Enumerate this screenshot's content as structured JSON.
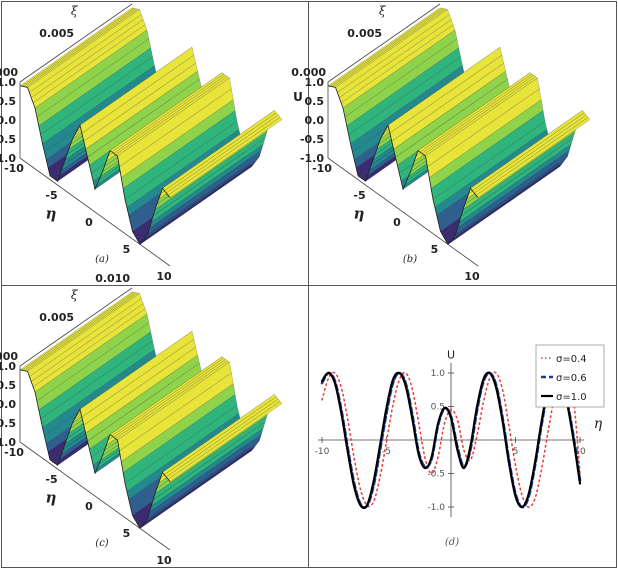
{
  "panels": [
    {
      "caption": "(a)"
    },
    {
      "caption": "(b)"
    },
    {
      "caption": "(c)"
    },
    {
      "caption": "(d)"
    }
  ],
  "surface_axes": {
    "xi_label": "ξ",
    "eta_label": "η",
    "u_label": "U",
    "xi_ticks": [
      "0.000",
      "0.005",
      "0.010"
    ],
    "eta_ticks": [
      "-10",
      "-5",
      "0",
      "5",
      "10"
    ],
    "u_ticks": [
      "1.0",
      "0.5",
      "0.0",
      "-0.5",
      "-1.0"
    ]
  },
  "colors": {
    "surface_low": "#2c1b5e",
    "surface_mid": "#21918c",
    "surface_high": "#f7e838",
    "series_0": "#e8453c",
    "series_1": "#1f3b8f",
    "series_2": "#000000"
  },
  "chart_data": [
    {
      "type": "surface",
      "panel": "(a)",
      "xlabel": "η",
      "ylabel": "ξ",
      "zlabel": "U",
      "xlim": [
        -10,
        10
      ],
      "ylim": [
        0,
        0.01
      ],
      "zlim": [
        -1,
        1
      ],
      "profile_eta": [
        -10,
        -9,
        -8,
        -7,
        -6,
        -5,
        -4,
        -3,
        -2,
        -1,
        0,
        1,
        2,
        3,
        4,
        5,
        6,
        7,
        8,
        9,
        10
      ],
      "profile_u": [
        0.9,
        1.0,
        0.6,
        -0.2,
        -0.9,
        -0.9,
        -0.2,
        0.5,
        1.0,
        0.3,
        -0.4,
        0.2,
        0.9,
        0.9,
        -0.1,
        -0.8,
        -1.0,
        -0.6,
        0.2,
        0.9,
        0.8
      ]
    },
    {
      "type": "surface",
      "panel": "(b)",
      "xlabel": "η",
      "ylabel": "ξ",
      "zlabel": "U",
      "xlim": [
        -10,
        10
      ],
      "ylim": [
        0,
        0.01
      ],
      "zlim": [
        -1,
        1
      ],
      "profile_eta": [
        -10,
        -9,
        -8,
        -7,
        -6,
        -5,
        -4,
        -3,
        -2,
        -1,
        0,
        1,
        2,
        3,
        4,
        5,
        6,
        7,
        8,
        9,
        10
      ],
      "profile_u": [
        0.9,
        1.0,
        0.6,
        -0.2,
        -0.9,
        -0.9,
        -0.2,
        0.5,
        1.0,
        0.3,
        -0.4,
        0.2,
        0.9,
        0.9,
        -0.1,
        -0.8,
        -1.0,
        -0.6,
        0.2,
        0.9,
        0.8
      ]
    },
    {
      "type": "surface",
      "panel": "(c)",
      "xlabel": "η",
      "ylabel": "ξ",
      "zlabel": "U",
      "xlim": [
        -10,
        10
      ],
      "ylim": [
        0,
        0.01
      ],
      "zlim": [
        -1,
        1
      ],
      "profile_eta": [
        -10,
        -9,
        -8,
        -7,
        -6,
        -5,
        -4,
        -3,
        -2,
        -1,
        0,
        1,
        2,
        3,
        4,
        5,
        6,
        7,
        8,
        9,
        10
      ],
      "profile_u": [
        0.9,
        1.0,
        0.6,
        -0.2,
        -0.9,
        -0.9,
        -0.2,
        0.5,
        1.0,
        0.3,
        -0.4,
        0.2,
        0.9,
        0.9,
        -0.1,
        -0.8,
        -1.0,
        -0.6,
        0.2,
        0.9,
        0.8
      ]
    },
    {
      "type": "line",
      "panel": "(d)",
      "xlabel": "η",
      "ylabel": "U",
      "xlim": [
        -10,
        10
      ],
      "ylim": [
        -1.15,
        1.15
      ],
      "xticks": [
        "-10",
        "-5",
        "0",
        "5",
        "10"
      ],
      "yticks": [
        "1.0",
        "0.5",
        "-0.5",
        "-1.0"
      ],
      "legend_position": "top-right",
      "x": [
        -10,
        -9.5,
        -9,
        -8.5,
        -8,
        -7.5,
        -7,
        -6.5,
        -6,
        -5.5,
        -5,
        -4.5,
        -4,
        -3.5,
        -3,
        -2.5,
        -2,
        -1.5,
        -1,
        -0.5,
        0,
        0.5,
        1,
        1.5,
        2,
        2.5,
        3,
        3.5,
        4,
        4.5,
        5,
        5.5,
        6,
        6.5,
        7,
        7.5,
        8,
        8.5,
        9,
        9.5,
        10
      ],
      "series": [
        {
          "name": "σ=0.4",
          "values": [
            0.6,
            0.92,
            1.0,
            0.78,
            0.3,
            -0.28,
            -0.75,
            -0.98,
            -0.92,
            -0.55,
            -0.02,
            0.52,
            0.9,
            1.0,
            0.76,
            0.25,
            -0.28,
            -0.5,
            -0.25,
            0.25,
            0.45,
            0.3,
            -0.15,
            -0.3,
            0.05,
            0.55,
            0.92,
            1.0,
            0.75,
            0.2,
            -0.38,
            -0.82,
            -1.0,
            -0.88,
            -0.46,
            0.1,
            0.62,
            0.95,
            0.98,
            0.6,
            -0.5
          ]
        },
        {
          "name": "σ=0.6",
          "values": [
            0.85,
            1.0,
            0.88,
            0.45,
            -0.12,
            -0.65,
            -0.96,
            -0.98,
            -0.68,
            -0.15,
            0.4,
            0.85,
            1.0,
            0.84,
            0.38,
            -0.18,
            -0.4,
            -0.28,
            0.22,
            0.47,
            0.35,
            -0.1,
            -0.4,
            -0.15,
            0.42,
            0.86,
            1.0,
            0.82,
            0.33,
            -0.3,
            -0.8,
            -1.0,
            -0.86,
            -0.4,
            0.2,
            0.72,
            0.98,
            0.95,
            0.58,
            0.05,
            -0.6
          ]
        },
        {
          "name": "σ=1.0",
          "values": [
            0.88,
            1.0,
            0.85,
            0.4,
            -0.18,
            -0.7,
            -0.98,
            -0.97,
            -0.62,
            -0.08,
            0.48,
            0.9,
            1.0,
            0.8,
            0.32,
            -0.22,
            -0.42,
            -0.25,
            0.25,
            0.48,
            0.33,
            -0.15,
            -0.42,
            -0.1,
            0.48,
            0.9,
            1.0,
            0.78,
            0.28,
            -0.35,
            -0.84,
            -1.0,
            -0.82,
            -0.35,
            0.25,
            0.76,
            0.99,
            0.93,
            0.55,
            0.0,
            -0.65
          ]
        }
      ]
    }
  ]
}
